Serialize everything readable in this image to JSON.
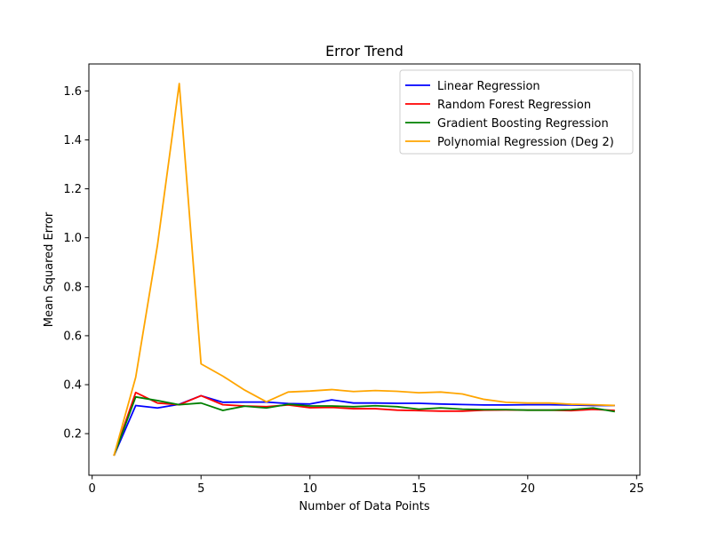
{
  "chart_data": {
    "type": "line",
    "title": "Error Trend",
    "xlabel": "Number of Data Points",
    "ylabel": "Mean Squared Error",
    "xlim": [
      -0.15,
      25.15
    ],
    "ylim": [
      0.03,
      1.71
    ],
    "x_ticks": [
      0,
      5,
      10,
      15,
      20,
      25
    ],
    "y_ticks": [
      0.2,
      0.4,
      0.6,
      0.8,
      1.0,
      1.2,
      1.4,
      1.6
    ],
    "grid": false,
    "legend_position": "top-right",
    "x": [
      1,
      2,
      3,
      4,
      5,
      6,
      7,
      8,
      9,
      10,
      11,
      12,
      13,
      14,
      15,
      16,
      17,
      18,
      19,
      20,
      21,
      22,
      23,
      24
    ],
    "series": [
      {
        "name": "Linear Regression",
        "color": "#0000ff",
        "values": [
          0.11,
          0.315,
          0.305,
          0.32,
          0.355,
          0.328,
          0.329,
          0.329,
          0.323,
          0.321,
          0.338,
          0.325,
          0.325,
          0.324,
          0.324,
          0.321,
          0.319,
          0.317,
          0.317,
          0.318,
          0.318,
          0.317,
          0.315,
          0.315
        ]
      },
      {
        "name": "Random Forest Regression",
        "color": "#ff0000",
        "values": [
          0.11,
          0.368,
          0.325,
          0.318,
          0.355,
          0.318,
          0.313,
          0.31,
          0.317,
          0.306,
          0.307,
          0.302,
          0.302,
          0.296,
          0.294,
          0.292,
          0.292,
          0.296,
          0.297,
          0.296,
          0.296,
          0.294,
          0.299,
          0.295
        ]
      },
      {
        "name": "Gradient Boosting Regression",
        "color": "#008000",
        "values": [
          0.11,
          0.35,
          0.335,
          0.318,
          0.325,
          0.295,
          0.312,
          0.305,
          0.32,
          0.313,
          0.313,
          0.31,
          0.314,
          0.31,
          0.3,
          0.305,
          0.3,
          0.298,
          0.298,
          0.296,
          0.296,
          0.298,
          0.305,
          0.29
        ]
      },
      {
        "name": "Polynomial Regression (Deg 2)",
        "color": "#ffa500",
        "values": [
          0.11,
          0.43,
          0.97,
          1.63,
          0.485,
          0.435,
          0.378,
          0.33,
          0.37,
          0.374,
          0.38,
          0.372,
          0.376,
          0.373,
          0.367,
          0.37,
          0.362,
          0.34,
          0.328,
          0.325,
          0.325,
          0.32,
          0.318,
          0.315
        ]
      }
    ]
  }
}
